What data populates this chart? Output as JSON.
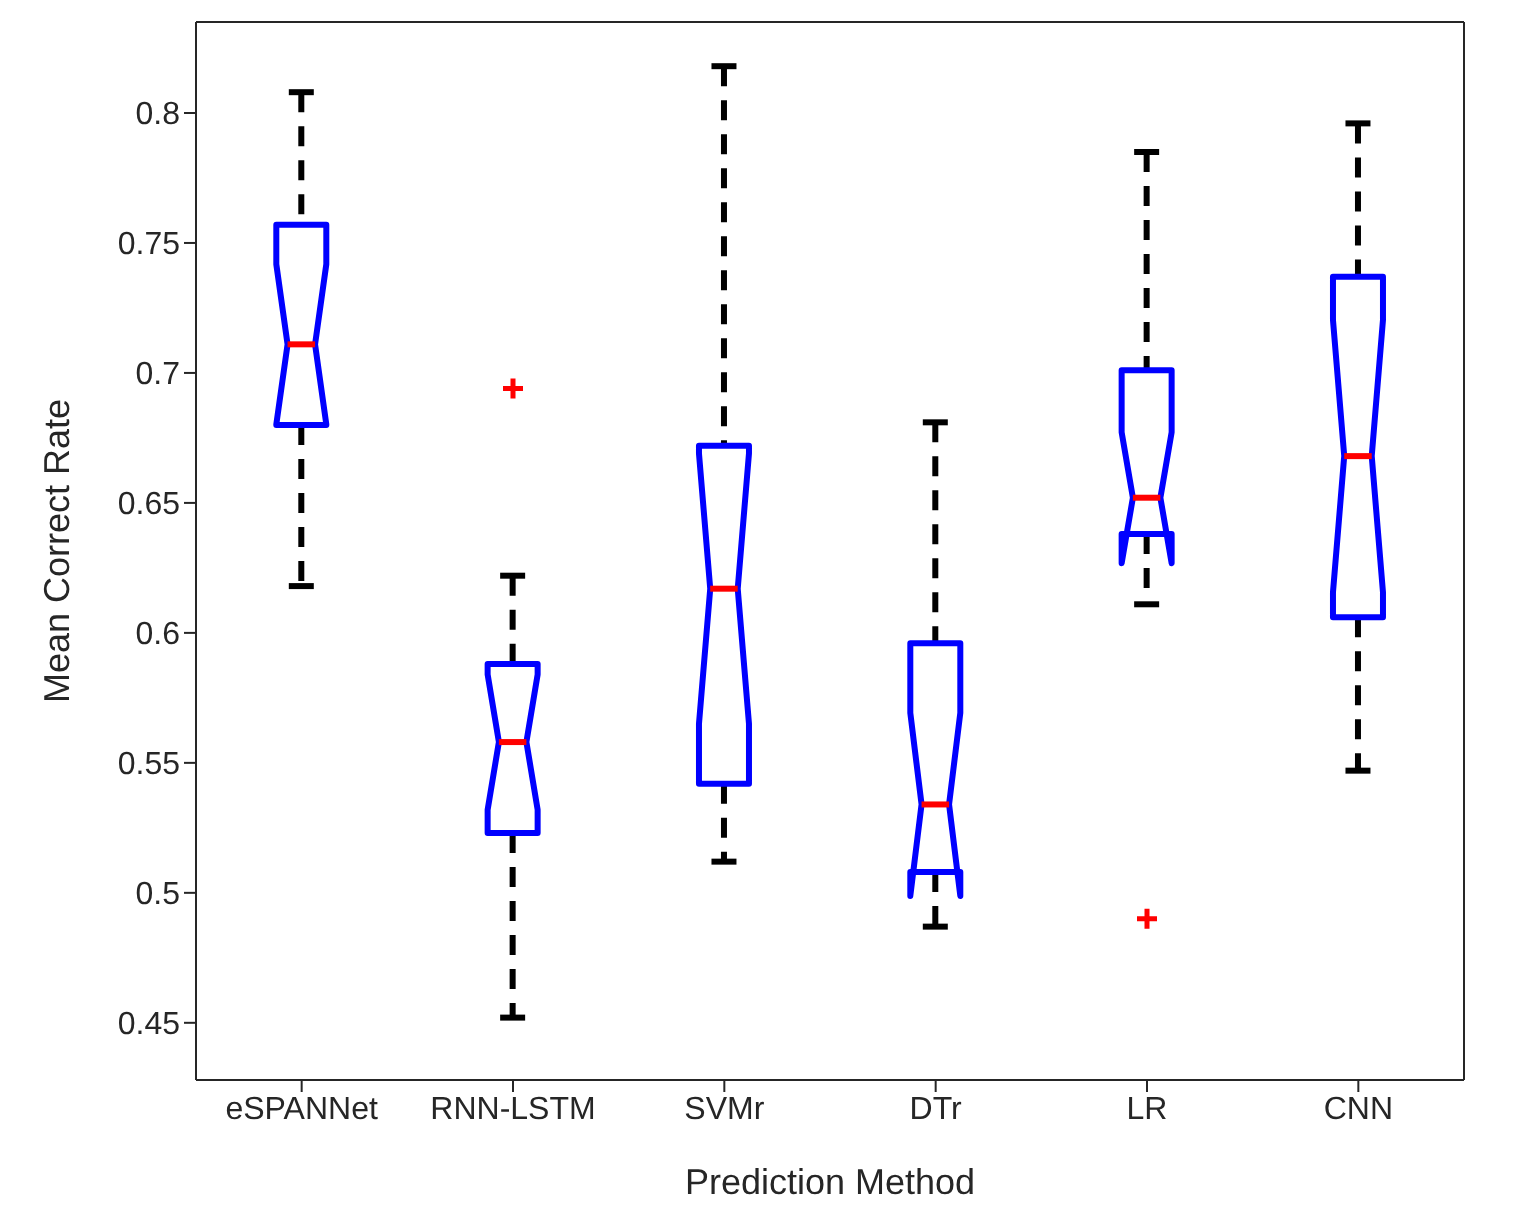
{
  "chart_data": {
    "type": "box",
    "xlabel": "Prediction Method",
    "ylabel": "Mean Correct Rate",
    "categories": [
      "eSPANNet",
      "RNN-LSTM",
      "SVMr",
      "DTr",
      "LR",
      "CNN"
    ],
    "color": "#0000ff",
    "boxes": [
      {
        "low": 0.618,
        "q1": 0.68,
        "median": 0.711,
        "q3": 0.757,
        "high": 0.808
      },
      {
        "low": 0.452,
        "q1": 0.523,
        "median": 0.558,
        "q3": 0.588,
        "high": 0.622,
        "outliers": [
          0.694
        ]
      },
      {
        "low": 0.512,
        "q1": 0.542,
        "median": 0.617,
        "q3": 0.672,
        "high": 0.818
      },
      {
        "low": 0.487,
        "q1": 0.508,
        "median": 0.534,
        "q3": 0.596,
        "high": 0.681
      },
      {
        "low": 0.611,
        "q1": 0.638,
        "median": 0.652,
        "q3": 0.701,
        "high": 0.785,
        "outliers": [
          0.49
        ]
      },
      {
        "low": 0.547,
        "q1": 0.606,
        "median": 0.668,
        "q3": 0.737,
        "high": 0.796
      }
    ],
    "ylim": [
      0.428,
      0.835
    ],
    "yticks": [
      0.45,
      0.5,
      0.55,
      0.6,
      0.65,
      0.7,
      0.75,
      0.8
    ],
    "grid": false
  }
}
